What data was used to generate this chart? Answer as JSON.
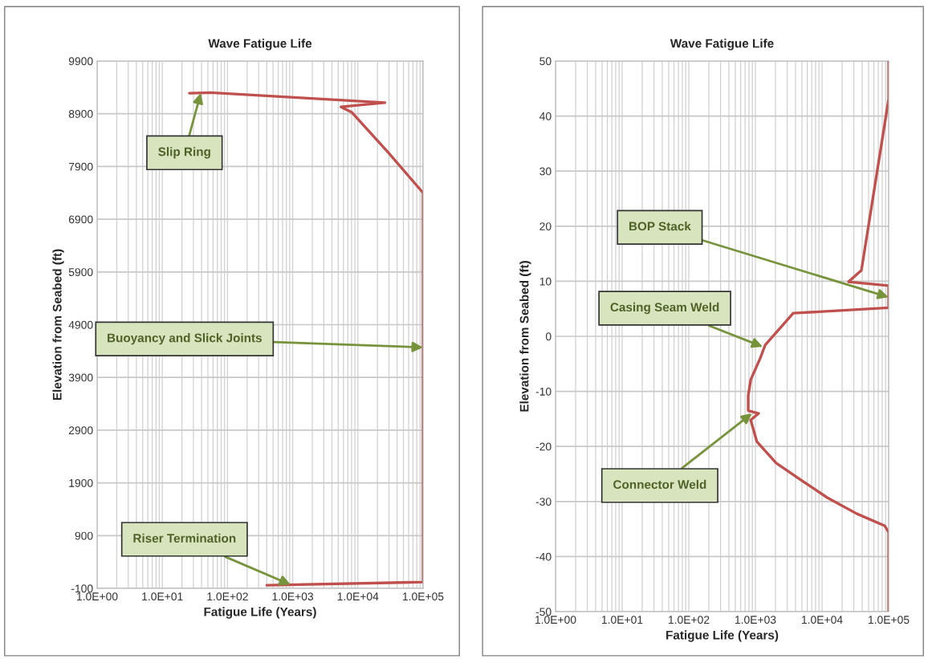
{
  "chart_data": [
    {
      "type": "line",
      "title": "Wave Fatigue Life",
      "xlabel": "Fatigue Life (Years)",
      "ylabel": "Elevation from Seabed (ft)",
      "log": "x",
      "grid": true,
      "marker": "none",
      "line_style": "solid",
      "xlim": [
        1,
        100000
      ],
      "xticks": [
        {
          "value": 1,
          "label": "1.0E+00"
        },
        {
          "value": 10,
          "label": "1.0E+01"
        },
        {
          "value": 100,
          "label": "1.0E+02"
        },
        {
          "value": 1000,
          "label": "1.0E+03"
        },
        {
          "value": 10000,
          "label": "1.0E+04"
        },
        {
          "value": 100000,
          "label": "1.0E+05"
        }
      ],
      "ylim": [
        -100,
        9900
      ],
      "yticks": [
        -100,
        900,
        1900,
        2900,
        3900,
        4900,
        5900,
        6900,
        7900,
        8900,
        9900
      ],
      "series": [
        {
          "color": "#c0504d",
          "x": [
            26,
            55,
            26000,
            5500,
            8000,
            29000,
            100000,
            100000,
            400
          ],
          "values": [
            9290,
            9300,
            9110,
            9030,
            8930,
            8170,
            7400,
            20,
            -40
          ]
        }
      ],
      "annotations": [
        {
          "text": "Slip Ring",
          "x": 39,
          "y": 9295
        },
        {
          "text": "Buoyancy and Slick Joints",
          "x": 100000,
          "y": 4470
        },
        {
          "text": "Riser Termination",
          "x": 930,
          "y": -30
        }
      ]
    },
    {
      "type": "line",
      "title": "Wave Fatigue Life",
      "xlabel": "Fatigue Life (Years)",
      "ylabel": "Elevation from Seabed (ft)",
      "log": "x",
      "grid": true,
      "marker": "none",
      "line_style": "solid",
      "xlim": [
        1,
        100000
      ],
      "xticks": [
        {
          "value": 1,
          "label": "1.0E+00"
        },
        {
          "value": 10,
          "label": "1.0E+01"
        },
        {
          "value": 100,
          "label": "1.0E+02"
        },
        {
          "value": 1000,
          "label": "1.0E+03"
        },
        {
          "value": 10000,
          "label": "1.0E+04"
        },
        {
          "value": 100000,
          "label": "1.0E+05"
        }
      ],
      "ylim": [
        -50,
        50
      ],
      "yticks": [
        -50,
        -40,
        -30,
        -20,
        -10,
        0,
        10,
        20,
        30,
        40,
        50
      ],
      "series": [
        {
          "color": "#c0504d",
          "x": [
            100000,
            100000,
            39000,
            25000,
            100000,
            100000,
            3700,
            1400,
            1180,
            850,
            780,
            780,
            1120,
            850,
            1050,
            2050,
            4700,
            12000,
            33000,
            87000,
            100000,
            100000
          ],
          "values": [
            50,
            43.1,
            12,
            9.9,
            9.2,
            5.2,
            4.2,
            -1.6,
            -4,
            -7.9,
            -10.8,
            -13.5,
            -14,
            -15.2,
            -19.1,
            -23,
            -26,
            -29.3,
            -32.2,
            -34.4,
            -35.6,
            -50
          ]
        }
      ],
      "annotations": [
        {
          "text": "BOP Stack",
          "x": 100000,
          "y": 7.1
        },
        {
          "text": "Casing Seam Weld",
          "x": 1290,
          "y": -1.9
        },
        {
          "text": "Connector Weld",
          "x": 890,
          "y": -14
        }
      ]
    }
  ]
}
